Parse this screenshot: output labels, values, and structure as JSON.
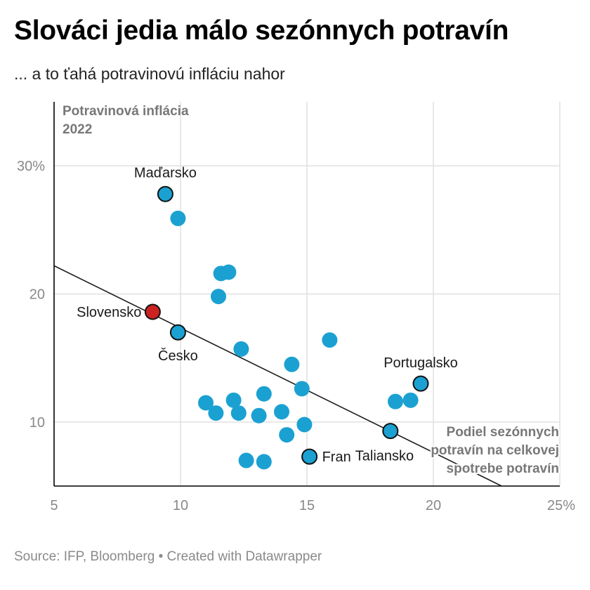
{
  "title": "Slováci jedia málo sezónnych potravín",
  "subtitle": "... a to ťahá potravinovú infláciu nahor",
  "footer": "Source: IFP, Bloomberg • Created with Datawrapper",
  "colors": {
    "point": "#1ba1d1",
    "highlight": "#cc2222",
    "grid": "#e0e0e0",
    "axis": "#000000"
  },
  "chart_data": {
    "type": "scatter",
    "title": "Slováci jedia málo sezónnych potravín",
    "subtitle": "... a to ťahá potravinovú infláciu nahor",
    "ylabel_lines": [
      "Potravinová inflácia",
      "2022"
    ],
    "xlabel_lines": [
      "Podiel sezónnych",
      "potravín na celkovej",
      "spotrebe potravín"
    ],
    "xlim": [
      5,
      25
    ],
    "ylim": [
      5,
      35
    ],
    "xticks": [
      {
        "value": 5,
        "label": "5"
      },
      {
        "value": 10,
        "label": "10"
      },
      {
        "value": 15,
        "label": "15"
      },
      {
        "value": 20,
        "label": "20"
      },
      {
        "value": 25,
        "label": "25%"
      }
    ],
    "yticks": [
      {
        "value": 10,
        "label": "10"
      },
      {
        "value": 20,
        "label": "20"
      },
      {
        "value": 30,
        "label": "30%"
      }
    ],
    "grid": true,
    "trendline": {
      "x": [
        5,
        22.7
      ],
      "y": [
        22.2,
        5
      ]
    },
    "points": [
      {
        "x": 9.4,
        "y": 27.8,
        "label": "Maďarsko",
        "outlined": true
      },
      {
        "x": 9.9,
        "y": 25.9
      },
      {
        "x": 11.6,
        "y": 21.6
      },
      {
        "x": 11.9,
        "y": 21.7
      },
      {
        "x": 11.5,
        "y": 19.8
      },
      {
        "x": 8.9,
        "y": 18.6,
        "label": "Slovensko",
        "highlight": true,
        "outlined": true
      },
      {
        "x": 9.9,
        "y": 17.0,
        "label": "Česko",
        "outlined": true
      },
      {
        "x": 12.4,
        "y": 15.7
      },
      {
        "x": 15.9,
        "y": 16.4
      },
      {
        "x": 14.4,
        "y": 14.5
      },
      {
        "x": 14.8,
        "y": 12.6
      },
      {
        "x": 13.3,
        "y": 12.2
      },
      {
        "x": 19.5,
        "y": 13.0,
        "label": "Portugalsko",
        "outlined": true
      },
      {
        "x": 18.5,
        "y": 11.6
      },
      {
        "x": 19.1,
        "y": 11.7
      },
      {
        "x": 11.0,
        "y": 11.5
      },
      {
        "x": 11.4,
        "y": 10.7
      },
      {
        "x": 12.1,
        "y": 11.7
      },
      {
        "x": 12.3,
        "y": 10.7
      },
      {
        "x": 13.1,
        "y": 10.5
      },
      {
        "x": 14.0,
        "y": 10.8
      },
      {
        "x": 14.9,
        "y": 9.8
      },
      {
        "x": 14.2,
        "y": 9.0
      },
      {
        "x": 18.3,
        "y": 9.3,
        "label": "Taliansko",
        "outlined": true
      },
      {
        "x": 15.1,
        "y": 7.3,
        "label": "Fran",
        "outlined": true
      },
      {
        "x": 12.6,
        "y": 7.0
      },
      {
        "x": 13.3,
        "y": 6.9
      }
    ]
  }
}
